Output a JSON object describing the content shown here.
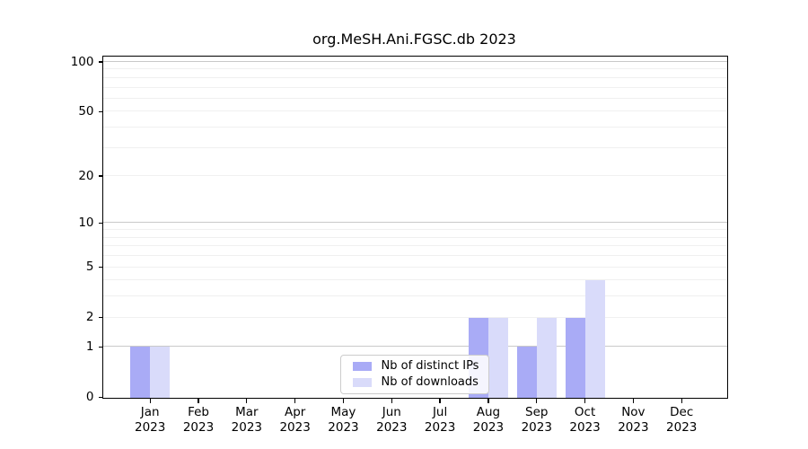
{
  "title": "org.MeSH.Ani.FGSC.db 2023",
  "chart_data": {
    "type": "bar",
    "title": "org.MeSH.Ani.FGSC.db 2023",
    "categories": [
      {
        "month": "Jan",
        "year": "2023"
      },
      {
        "month": "Feb",
        "year": "2023"
      },
      {
        "month": "Mar",
        "year": "2023"
      },
      {
        "month": "Apr",
        "year": "2023"
      },
      {
        "month": "May",
        "year": "2023"
      },
      {
        "month": "Jun",
        "year": "2023"
      },
      {
        "month": "Jul",
        "year": "2023"
      },
      {
        "month": "Aug",
        "year": "2023"
      },
      {
        "month": "Sep",
        "year": "2023"
      },
      {
        "month": "Oct",
        "year": "2023"
      },
      {
        "month": "Nov",
        "year": "2023"
      },
      {
        "month": "Dec",
        "year": "2023"
      }
    ],
    "series": [
      {
        "name": "Nb of distinct IPs",
        "color": "#a9abf6",
        "values": [
          1,
          0,
          0,
          0,
          0,
          0,
          0,
          2,
          1,
          2,
          0,
          0
        ]
      },
      {
        "name": "Nb of downloads",
        "color": "#d9dbfa",
        "values": [
          1,
          0,
          0,
          0,
          0,
          0,
          0,
          2,
          2,
          4,
          0,
          0
        ]
      }
    ],
    "y_axis": {
      "scale": "log10(1+x)",
      "ticks": [
        0,
        1,
        2,
        5,
        10,
        20,
        50,
        100
      ],
      "gridlines_major": [
        1,
        10,
        100
      ],
      "gridlines_minor": [
        2,
        3,
        4,
        5,
        6,
        7,
        8,
        9,
        20,
        30,
        40,
        50,
        60,
        70,
        80,
        90
      ]
    },
    "xlabel": "",
    "ylabel": "",
    "legend_position": "bottom-center-inside",
    "grid": true
  },
  "colors": {
    "distinct_ips": "#a9abf6",
    "downloads": "#d9dbfa",
    "grid_major": "#c9c9c9",
    "grid_minor": "#f0f0f0",
    "axis": "#000000",
    "legend_border": "#cccccc"
  }
}
